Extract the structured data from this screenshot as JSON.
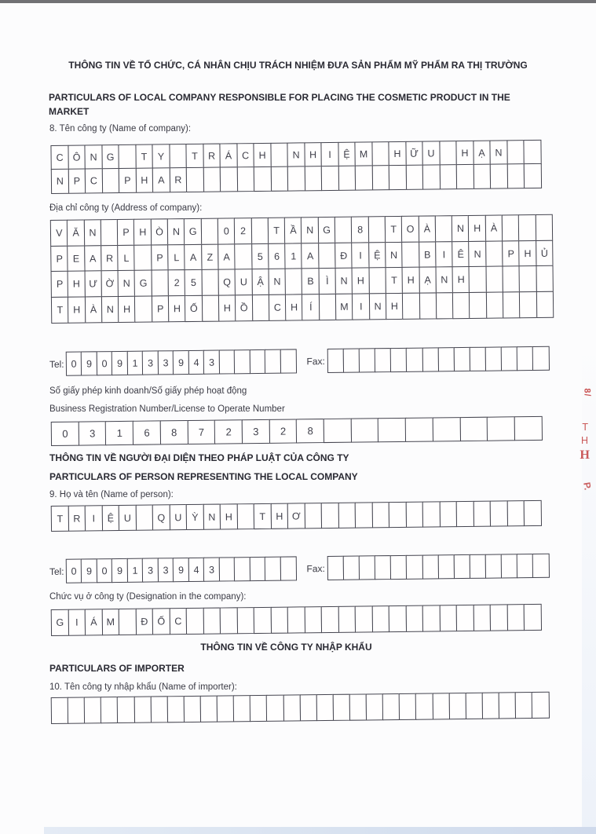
{
  "document": {
    "section_market": {
      "title_vi": "THÔNG TIN VỀ TỔ CHỨC, CÁ NHÂN CHỊU TRÁCH NHIỆM ĐƯA SẢN PHẨM MỸ PHẨM RA THỊ TRƯỜNG",
      "title_en": "PARTICULARS OF LOCAL COMPANY RESPONSIBLE FOR PLACING THE COSMETIC PRODUCT IN THE MARKET"
    },
    "company_name": {
      "label": "8. Tên công ty (Name of company):",
      "rows": [
        [
          "C",
          "Ô",
          "N",
          "G",
          "",
          "T",
          "Y",
          "",
          "T",
          "R",
          "Á",
          "C",
          "H",
          "",
          "N",
          "H",
          "I",
          "Ệ",
          "M",
          "",
          "H",
          "Ữ",
          "U",
          "",
          "H",
          "Ạ",
          "N",
          "",
          ""
        ],
        [
          "N",
          "P",
          "C",
          "",
          "P",
          "H",
          "A",
          "R",
          "",
          "",
          "",
          "",
          "",
          "",
          "",
          "",
          "",
          "",
          "",
          "",
          "",
          "",
          "",
          "",
          "",
          "",
          "",
          "",
          ""
        ]
      ]
    },
    "company_address": {
      "label": "Địa chỉ công ty (Address of company):",
      "rows": [
        [
          "V",
          "Ă",
          "N",
          "",
          "P",
          "H",
          "Ò",
          "N",
          "G",
          "",
          "0",
          "2",
          "",
          "T",
          "Ầ",
          "N",
          "G",
          "",
          "8",
          "",
          "T",
          "O",
          "À",
          "",
          "N",
          "H",
          "À",
          "",
          "",
          ""
        ],
        [
          "P",
          "E",
          "A",
          "R",
          "L",
          "",
          "P",
          "L",
          "A",
          "Z",
          "A",
          "",
          "5",
          "6",
          "1",
          "A",
          "",
          "Đ",
          "I",
          "Ệ",
          "N",
          "",
          "B",
          "I",
          "Ê",
          "N",
          "",
          "P",
          "H",
          "Ủ"
        ],
        [
          "P",
          "H",
          "Ư",
          "Ờ",
          "N",
          "G",
          "",
          "2",
          "5",
          "",
          "Q",
          "U",
          "Ậ",
          "N",
          "",
          "B",
          "Ì",
          "N",
          "H",
          "",
          "T",
          "H",
          "Ạ",
          "N",
          "H",
          "",
          "",
          "",
          "",
          ""
        ],
        [
          "T",
          "H",
          "À",
          "N",
          "H",
          "",
          "P",
          "H",
          "Ố",
          "",
          "H",
          "Ồ",
          "",
          "C",
          "H",
          "Í",
          "",
          "M",
          "I",
          "N",
          "H",
          "",
          "",
          "",
          "",
          "",
          "",
          "",
          "",
          ""
        ]
      ]
    },
    "company_contact": {
      "tel_label": "Tel:",
      "fax_label": "Fax:",
      "tel_cells": [
        "0",
        "9",
        "0",
        "9",
        "1",
        "3",
        "3",
        "9",
        "4",
        "3",
        "",
        "",
        "",
        "",
        ""
      ],
      "fax_cells": [
        "",
        "",
        "",
        "",
        "",
        "",
        "",
        "",
        "",
        "",
        "",
        "",
        "",
        ""
      ]
    },
    "registration": {
      "label_vi": "Số giấy phép kinh doanh/Số giấy phép hoạt động",
      "label_en": "Business Registration Number/License to Operate Number",
      "cells": [
        "0",
        "3",
        "1",
        "6",
        "8",
        "7",
        "2",
        "3",
        "2",
        "8",
        "",
        "",
        "",
        "",
        "",
        "",
        "",
        ""
      ]
    },
    "section_person": {
      "title_vi": "THÔNG TIN VỀ NGƯỜI ĐẠI DIỆN THEO PHÁP LUẬT CỦA CÔNG TY",
      "title_en": "PARTICULARS OF PERSON REPRESENTING THE LOCAL COMPANY"
    },
    "person_name": {
      "label": "9. Họ và tên (Name of person):",
      "cells": [
        "T",
        "R",
        "I",
        "Ệ",
        "U",
        "",
        "Q",
        "U",
        "Ỳ",
        "N",
        "H",
        "",
        "T",
        "H",
        "Ơ",
        "",
        "",
        "",
        "",
        "",
        "",
        "",
        "",
        "",
        "",
        "",
        "",
        "",
        ""
      ]
    },
    "person_contact": {
      "tel_label": "Tel:",
      "fax_label": "Fax:",
      "tel_cells": [
        "0",
        "9",
        "0",
        "9",
        "1",
        "3",
        "3",
        "9",
        "4",
        "3",
        "",
        "",
        "",
        "",
        ""
      ],
      "fax_cells": [
        "",
        "",
        "",
        "",
        "",
        "",
        "",
        "",
        "",
        "",
        "",
        "",
        "",
        ""
      ]
    },
    "designation": {
      "label": "Chức vụ ở công ty (Designation in the company):",
      "cells": [
        "G",
        "I",
        "Á",
        "M",
        "",
        "Đ",
        "Ố",
        "C",
        "",
        "",
        "",
        "",
        "",
        "",
        "",
        "",
        "",
        "",
        "",
        "",
        "",
        "",
        "",
        "",
        "",
        "",
        "",
        "",
        ""
      ]
    },
    "section_importer": {
      "title_vi": "THÔNG TIN VỀ CÔNG TY NHẬP KHẨU",
      "title_en": "PARTICULARS OF IMPORTER"
    },
    "importer_name": {
      "label": "10. Tên công ty nhập khẩu (Name of importer):",
      "cells": [
        "",
        "",
        "",
        "",
        "",
        "",
        "",
        "",
        "",
        "",
        "",
        "",
        "",
        "",
        "",
        "",
        "",
        "",
        "",
        "",
        "",
        "",
        "",
        "",
        "",
        "",
        "",
        "",
        "",
        ""
      ]
    },
    "stamp_fragments": [
      "8/",
      "T",
      "H",
      "H",
      "P."
    ],
    "colors": {
      "stamp_red": "#c84a49",
      "grid_border": "#454550",
      "text": "#32323c",
      "scan_edge_gray": "#717174",
      "scan_edge_blue": "#d8e2f0"
    }
  }
}
